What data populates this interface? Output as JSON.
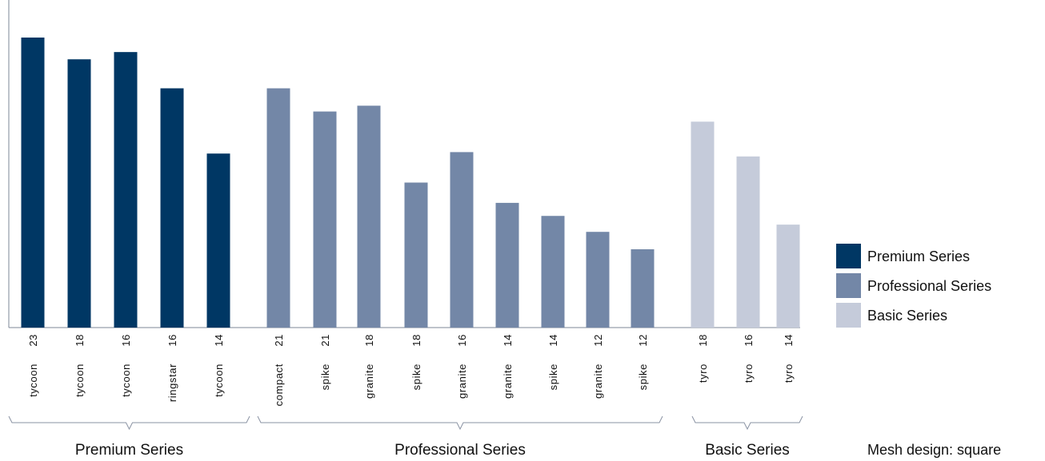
{
  "chart_data": {
    "type": "bar",
    "categories": [
      "tycoon 23",
      "tycoon 18",
      "tycoon 16",
      "ringstar 16",
      "tycoon 14",
      "compact 21",
      "spike 21",
      "granite 18",
      "spike 18",
      "granite 16",
      "granite 14",
      "spike 14",
      "granite 12",
      "spike 12",
      "tyro 18",
      "tyro 16",
      "tyro 14"
    ],
    "bars": [
      {
        "model": "tycoon",
        "size": "23",
        "group": "Premium Series",
        "value": 100
      },
      {
        "model": "tycoon",
        "size": "18",
        "group": "Premium Series",
        "value": 92.5
      },
      {
        "model": "tycoon",
        "size": "16",
        "group": "Premium Series",
        "value": 95
      },
      {
        "model": "ringstar",
        "size": "16",
        "group": "Premium Series",
        "value": 82.5
      },
      {
        "model": "tycoon",
        "size": "14",
        "group": "Premium Series",
        "value": 60
      },
      {
        "model": "compact",
        "size": "21",
        "group": "Professional Series",
        "value": 82.5
      },
      {
        "model": "spike",
        "size": "21",
        "group": "Professional Series",
        "value": 74.5
      },
      {
        "model": "granite",
        "size": "18",
        "group": "Professional Series",
        "value": 76.5
      },
      {
        "model": "spike",
        "size": "18",
        "group": "Professional Series",
        "value": 50
      },
      {
        "model": "granite",
        "size": "16",
        "group": "Professional Series",
        "value": 60.5
      },
      {
        "model": "granite",
        "size": "14",
        "group": "Professional Series",
        "value": 43
      },
      {
        "model": "spike",
        "size": "14",
        "group": "Professional Series",
        "value": 38.5
      },
      {
        "model": "granite",
        "size": "12",
        "group": "Professional Series",
        "value": 33
      },
      {
        "model": "spike",
        "size": "12",
        "group": "Professional Series",
        "value": 27
      },
      {
        "model": "tyro",
        "size": "18",
        "group": "Basic Series",
        "value": 71
      },
      {
        "model": "tyro",
        "size": "16",
        "group": "Basic Series",
        "value": 59
      },
      {
        "model": "tyro",
        "size": "14",
        "group": "Basic Series",
        "value": 35.5
      }
    ],
    "groups": [
      {
        "name": "Premium Series",
        "color": "#003764"
      },
      {
        "name": "Professional Series",
        "color": "#7387a7"
      },
      {
        "name": "Basic Series",
        "color": "#c5cbda"
      }
    ],
    "ylim": [
      0,
      100
    ],
    "y_axis_ticks_shown": false,
    "grid": false,
    "legend_position": "right",
    "footnote": "Mesh design: square"
  }
}
